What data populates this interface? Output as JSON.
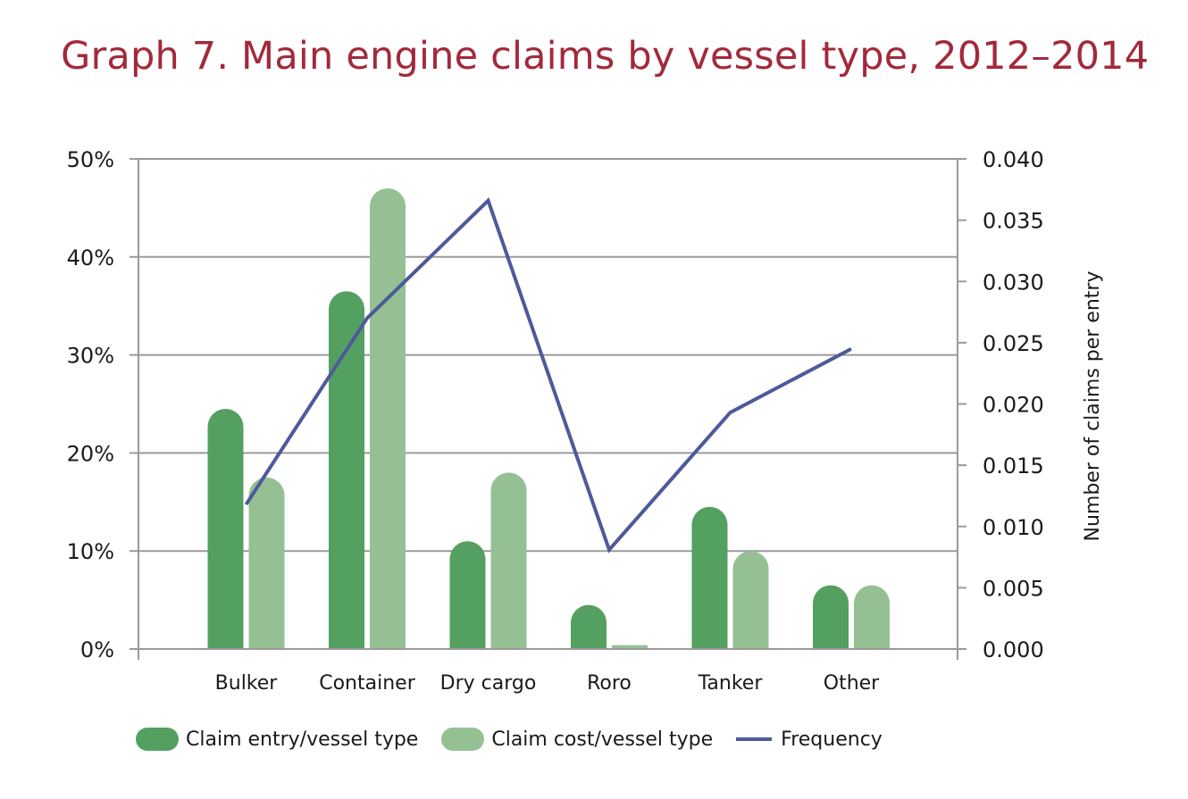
{
  "chart_data": {
    "type": "bar",
    "title": "Graph 7. Main engine claims by vessel type, 2012–2014",
    "categories": [
      "Bulker",
      "Container",
      "Dry cargo",
      "Roro",
      "Tanker",
      "Other"
    ],
    "series": [
      {
        "name": "Claim entry/vessel type",
        "type": "bar",
        "axis": "left",
        "color": "#54a060",
        "values": [
          24.5,
          36.5,
          11.0,
          4.5,
          14.5,
          6.5
        ]
      },
      {
        "name": "Claim cost/vessel type",
        "type": "bar",
        "axis": "left",
        "color": "#95c094",
        "values": [
          17.5,
          47.0,
          18.0,
          0.4,
          10.0,
          6.5
        ]
      },
      {
        "name": "Frequency",
        "type": "line",
        "axis": "right",
        "color": "#4d5a9a",
        "values": [
          0.0118,
          0.027,
          0.0366,
          0.0081,
          0.0193,
          0.0245
        ]
      }
    ],
    "ylabel": "",
    "y2label": "Number of claims per entry",
    "ylim": [
      0,
      50
    ],
    "y2lim": [
      0,
      0.04
    ],
    "yticks": [
      "0%",
      "10%",
      "20%",
      "30%",
      "40%",
      "50%"
    ],
    "y2ticks": [
      "0.000",
      "0.005",
      "0.010",
      "0.015",
      "0.020",
      "0.025",
      "0.030",
      "0.035",
      "0.040"
    ],
    "grid": true,
    "legend_position": "bottom"
  }
}
